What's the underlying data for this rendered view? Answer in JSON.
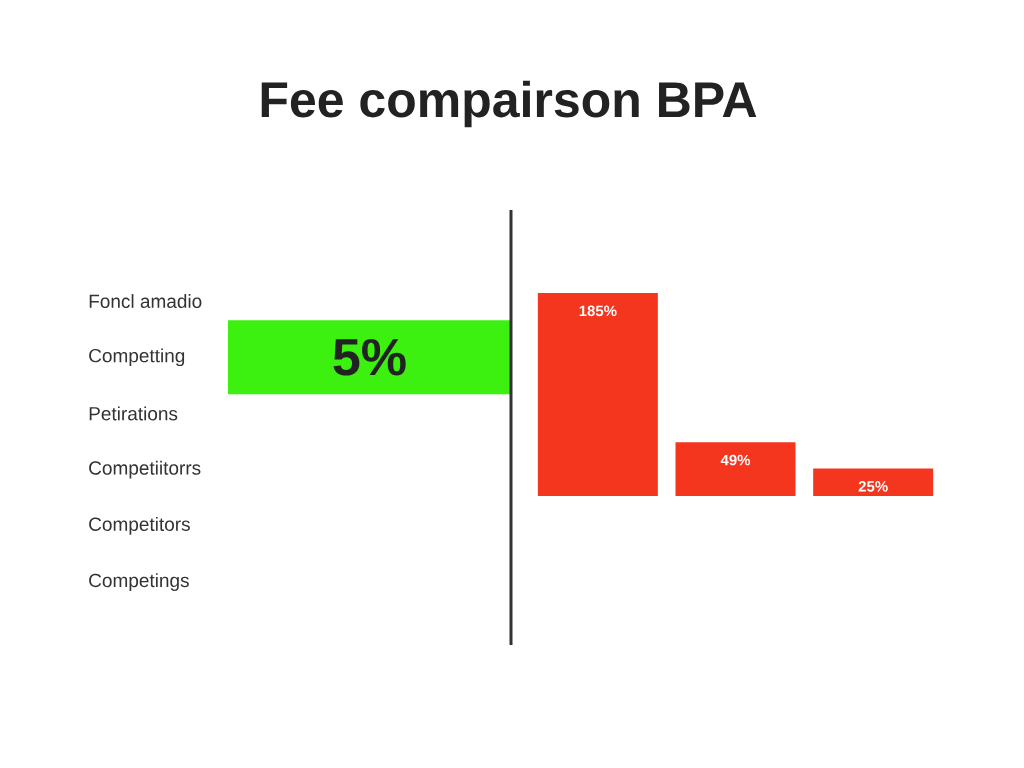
{
  "chart_data": [
    {
      "type": "bar",
      "orientation": "horizontal",
      "title": "Fee compairson BPA",
      "categories": [
        "Foncl amadio",
        "Competting",
        "Petirations",
        "Competiitorrs",
        "Competitors",
        "Competings"
      ],
      "values": [
        null,
        5,
        null,
        null,
        null,
        null
      ],
      "color": "#3cf010",
      "xlim": [
        5,
        0
      ],
      "value_labels": [
        null,
        "5%",
        null,
        null,
        null,
        null
      ],
      "tick_labels": "y"
    },
    {
      "type": "bar",
      "categories": [
        null,
        null,
        null
      ],
      "values": [
        185,
        49,
        25
      ],
      "color": "#f5361e",
      "ylim": [
        0,
        185
      ],
      "value_labels": [
        "185%",
        "49%",
        "25%"
      ],
      "tick_labels": false
    }
  ]
}
